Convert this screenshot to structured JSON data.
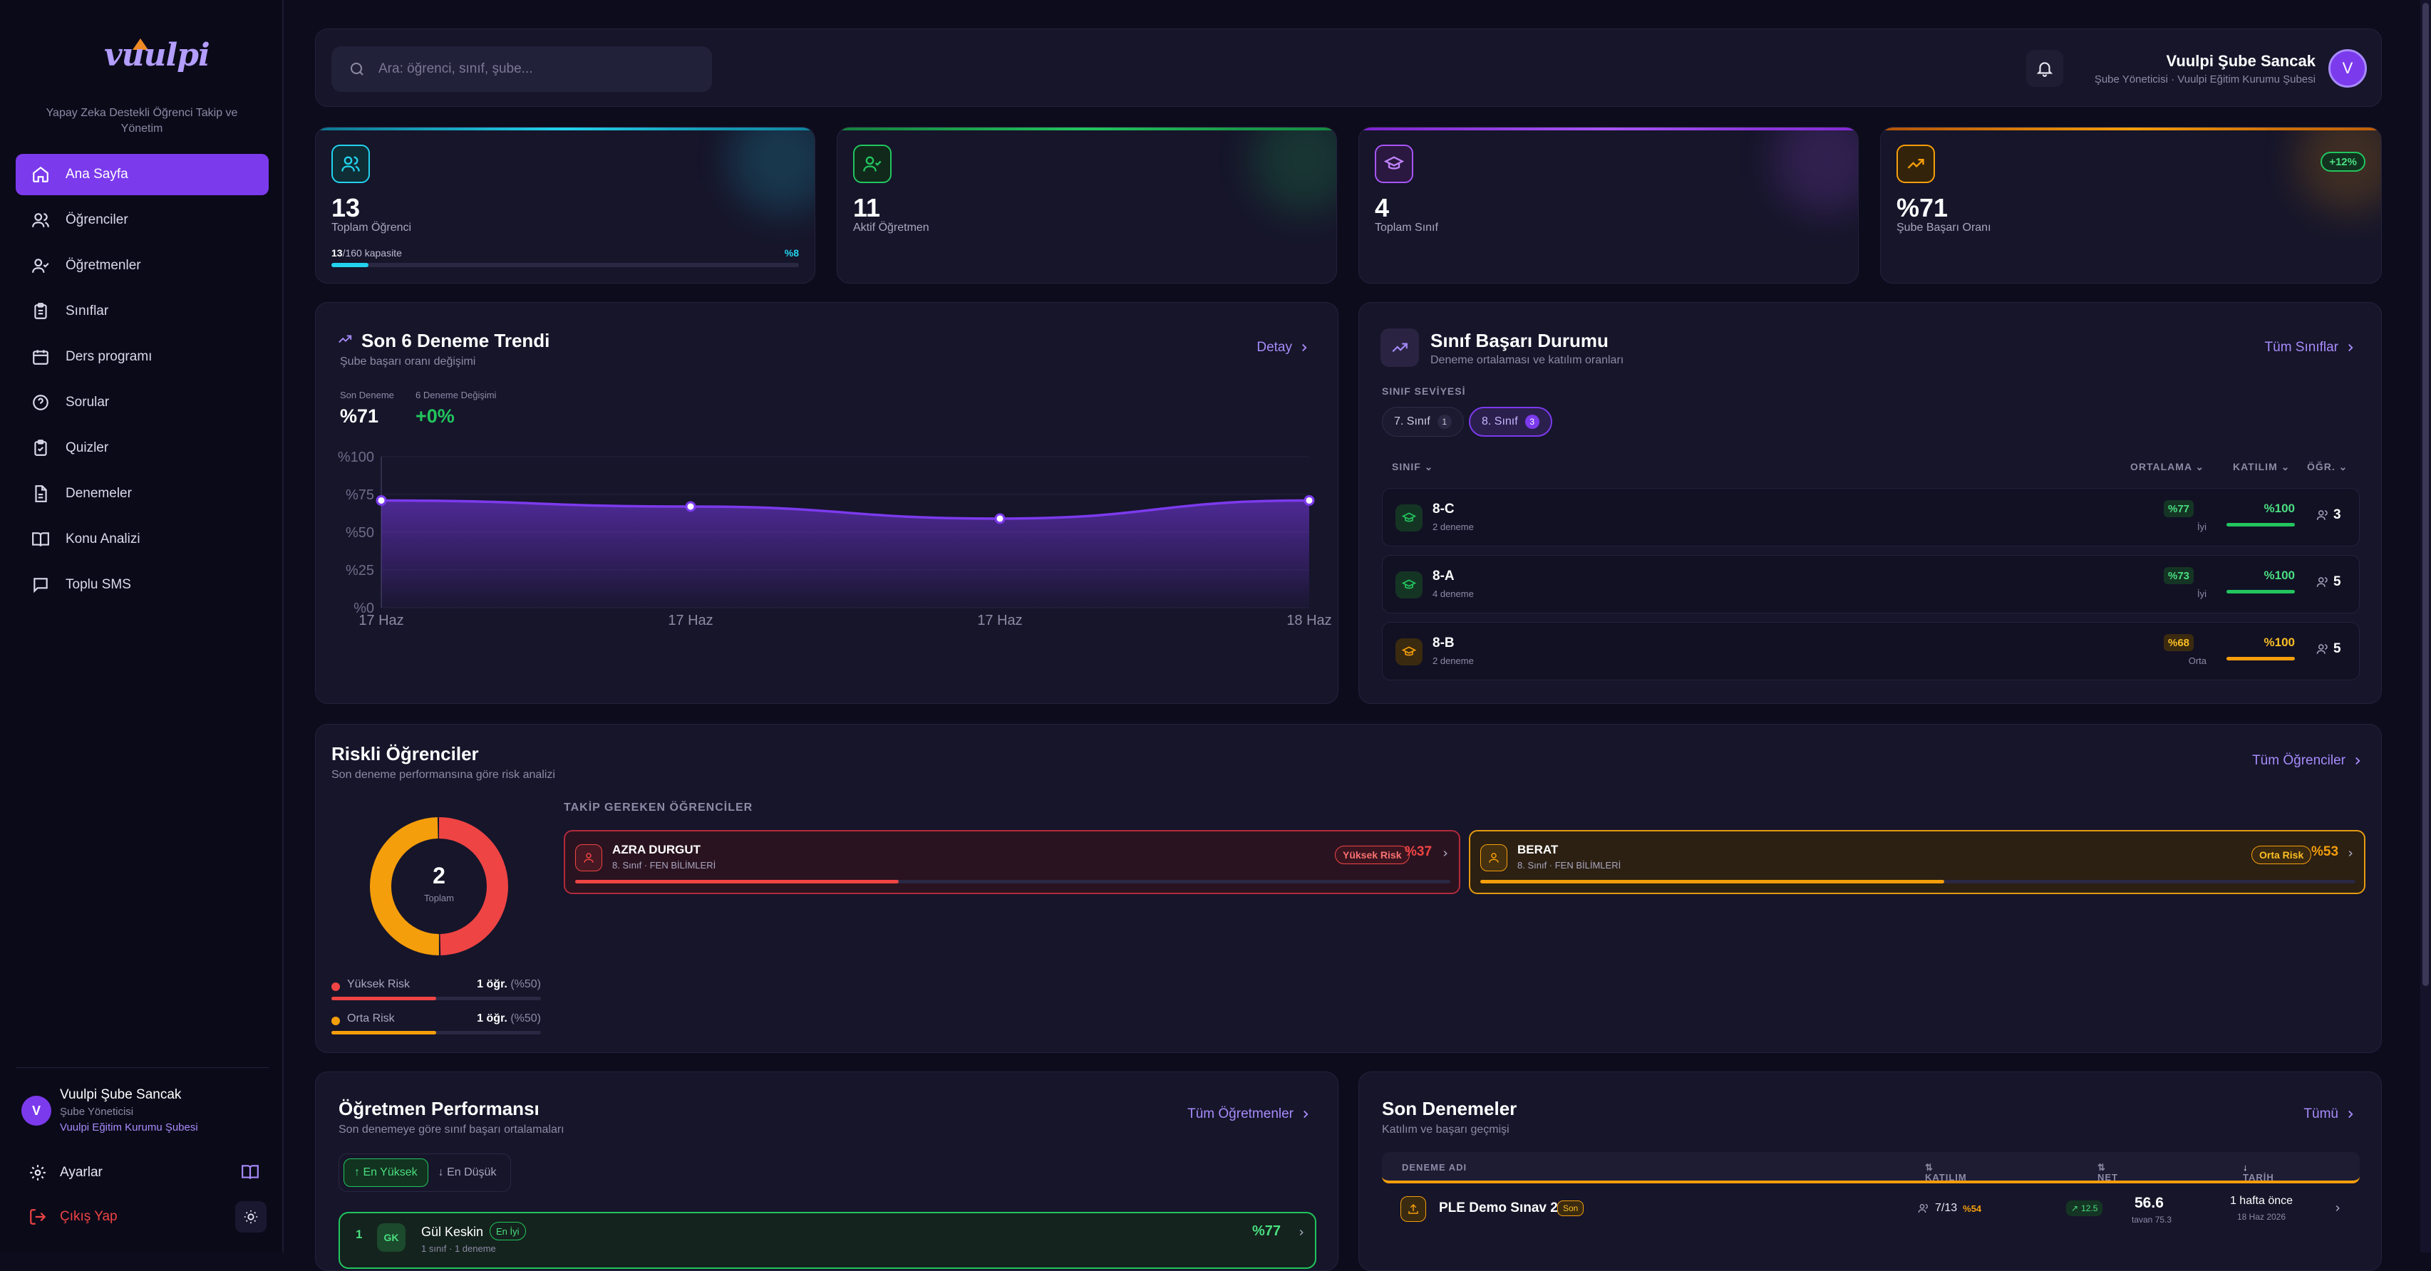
{
  "brand": {
    "logo": "vuulpi",
    "tagline": "Yapay Zeka Destekli Öğrenci Takip ve Yönetim"
  },
  "sidebar": {
    "items": [
      {
        "label": "Ana Sayfa",
        "icon": "home-icon",
        "active": true
      },
      {
        "label": "Öğrenciler",
        "icon": "users-icon"
      },
      {
        "label": "Öğretmenler",
        "icon": "user-check-icon"
      },
      {
        "label": "Sınıflar",
        "icon": "clipboard-icon"
      },
      {
        "label": "Ders programı",
        "icon": "calendar-icon"
      },
      {
        "label": "Sorular",
        "icon": "help-circle-icon"
      },
      {
        "label": "Quizler",
        "icon": "clipboard-check-icon"
      },
      {
        "label": "Denemeler",
        "icon": "file-icon"
      },
      {
        "label": "Konu Analizi",
        "icon": "book-open-icon"
      },
      {
        "label": "Toplu SMS",
        "icon": "message-icon"
      }
    ],
    "user": {
      "initial": "V",
      "name": "Vuulpi Şube Sancak",
      "role": "Şube Yöneticisi",
      "org": "Vuulpi Eğitim Kurumu Şubesi"
    },
    "settings": "Ayarlar",
    "logout": "Çıkış Yap"
  },
  "topbar": {
    "search_placeholder": "Ara: öğrenci, sınıf, şube...",
    "user_name": "Vuulpi Şube Sancak",
    "user_sub": "Şube Yöneticisi · Vuulpi Eğitim Kurumu Şubesi",
    "initial": "V"
  },
  "stats": [
    {
      "value": "13",
      "label": "Toplam Öğrenci",
      "capacity_count": "13",
      "capacity_rest": "/160 kapasite",
      "capacity_pct": "%8",
      "capacity_fraction": 0.08,
      "color": "#22d3ee"
    },
    {
      "value": "11",
      "label": "Aktif Öğretmen",
      "color": "#22c55e"
    },
    {
      "value": "4",
      "label": "Toplam Sınıf",
      "color": "#a855f7"
    },
    {
      "value": "%71",
      "label": "Şube Başarı Oranı",
      "badge": "+12%",
      "color": "#f59e0b"
    }
  ],
  "trend": {
    "title": "Son 6 Deneme Trendi",
    "subtitle": "Şube başarı oranı değişimi",
    "link": "Detay",
    "last_label": "Son Deneme",
    "last_value": "%71",
    "change_label": "6 Deneme Değişimi",
    "change_value": "+0%"
  },
  "chart_data": {
    "type": "area",
    "x": [
      "17 Haz",
      "17 Haz",
      "17 Haz",
      "18 Haz"
    ],
    "values": [
      71,
      67,
      59,
      71
    ],
    "yticks": [
      "%0",
      "%25",
      "%50",
      "%75",
      "%100"
    ],
    "ylim": [
      0,
      100
    ],
    "grid": true,
    "color": "#7c3aed"
  },
  "classes": {
    "title": "Sınıf Başarı Durumu",
    "subtitle": "Deneme ortalaması ve katılım oranları",
    "link": "Tüm Sınıflar",
    "level_label": "SINIF SEVİYESİ",
    "levels": [
      {
        "label": "7. Sınıf",
        "count": "1"
      },
      {
        "label": "8. Sınıf",
        "count": "3",
        "active": true
      }
    ],
    "headers": {
      "sinif": "SINIF",
      "ortalama": "ORTALAMA",
      "katilim": "KATILIM",
      "ogr": "ÖĞR."
    },
    "rows": [
      {
        "name": "8-C",
        "sub": "2 deneme",
        "avg": "%77",
        "avg_label": "İyi",
        "katilim": "%100",
        "students": "3",
        "color": "#22c55e"
      },
      {
        "name": "8-A",
        "sub": "4 deneme",
        "avg": "%73",
        "avg_label": "İyi",
        "katilim": "%100",
        "students": "5",
        "color": "#22c55e"
      },
      {
        "name": "8-B",
        "sub": "2 deneme",
        "avg": "%68",
        "avg_label": "Orta",
        "katilim": "%100",
        "students": "5",
        "color": "#f59e0b"
      }
    ]
  },
  "risk": {
    "title": "Riskli Öğrenciler",
    "subtitle": "Son deneme performansına göre risk analizi",
    "link": "Tüm Öğrenciler",
    "total": "2",
    "total_label": "Toplam",
    "takip": "TAKİP GEREKEN ÖĞRENCİLER",
    "legend": [
      {
        "label": "Yüksek Risk",
        "count": "1 öğr.",
        "pct": "(%50)",
        "color": "#ef4444",
        "fraction": 0.5
      },
      {
        "label": "Orta Risk",
        "count": "1 öğr.",
        "pct": "(%50)",
        "color": "#f59e0b",
        "fraction": 0.5
      }
    ],
    "students": [
      {
        "name": "AZRA DURGUT",
        "sub": "8. Sınıf · FEN BİLİMLERİ",
        "badge": "Yüksek Risk",
        "pct": "%37",
        "fraction": 0.37,
        "color": "#ef4444"
      },
      {
        "name": "BERAT",
        "sub": "8. Sınıf · FEN BİLİMLERİ",
        "badge": "Orta Risk",
        "pct": "%53",
        "fraction": 0.53,
        "color": "#f59e0b"
      }
    ]
  },
  "teachers": {
    "title": "Öğretmen Performansı",
    "subtitle": "Son denemeye göre sınıf başarı ortalamaları",
    "link": "Tüm Öğretmenler",
    "tab_high": "↑ En Yüksek",
    "tab_low": "↓ En Düşük",
    "row": {
      "rank": "1",
      "initials": "GK",
      "name": "Gül Keskin",
      "badge": "En İyi",
      "sub": "1 sınıf · 1 deneme",
      "pct": "%77"
    }
  },
  "recent": {
    "title": "Son Denemeler",
    "subtitle": "Katılım ve başarı geçmişi",
    "link": "Tümü",
    "headers": {
      "name": "DENEME ADI",
      "katilim": "KATILIM",
      "net": "NET",
      "tarih": "TARİH"
    },
    "row": {
      "name": "PLE Demo Sınav 2",
      "badge": "Son",
      "katilim": "7/13",
      "katilim_pct": "%54",
      "delta": "12.5",
      "net": "56.6",
      "net_sub": "tavan 75.3",
      "date": "1 hafta önce",
      "date_sub": "18 Haz 2026"
    }
  }
}
